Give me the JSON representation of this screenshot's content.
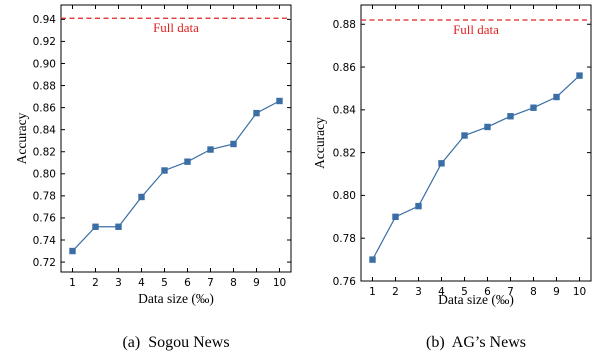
{
  "chart_data": [
    {
      "type": "line",
      "caption": "(a)  Sogou News",
      "xlabel": "Data size (‰)",
      "ylabel": "Accuracy",
      "x": [
        1,
        2,
        3,
        4,
        5,
        6,
        7,
        8,
        9,
        10
      ],
      "xticks": [
        "1",
        "2",
        "3",
        "4",
        "5",
        "6",
        "7",
        "8",
        "9",
        "10"
      ],
      "xlim": [
        0.5,
        10.5
      ],
      "ylim": [
        0.711,
        0.953
      ],
      "yticks": [
        "0.72",
        "0.74",
        "0.76",
        "0.78",
        "0.80",
        "0.82",
        "0.84",
        "0.86",
        "0.88",
        "0.90",
        "0.92",
        "0.94"
      ],
      "series": [
        {
          "values": [
            0.73,
            0.752,
            0.752,
            0.779,
            0.803,
            0.811,
            0.822,
            0.827,
            0.855,
            0.866
          ],
          "color": "#3a6ea5"
        }
      ],
      "reference_line": {
        "label": "Full data",
        "value": 0.941,
        "color": "#e02020"
      },
      "grid": false
    },
    {
      "type": "line",
      "caption": "(b)  AG’s News",
      "xlabel": "Data size (‰)",
      "ylabel": "Accuracy",
      "x": [
        1,
        2,
        3,
        4,
        5,
        6,
        7,
        8,
        9,
        10
      ],
      "xticks": [
        "1",
        "2",
        "3",
        "4",
        "5",
        "6",
        "7",
        "8",
        "9",
        "10"
      ],
      "xlim": [
        0.5,
        10.5
      ],
      "ylim": [
        0.76,
        0.889
      ],
      "yticks": [
        "0.76",
        "0.78",
        "0.80",
        "0.82",
        "0.84",
        "0.86",
        "0.88"
      ],
      "series": [
        {
          "values": [
            0.77,
            0.79,
            0.795,
            0.815,
            0.828,
            0.832,
            0.837,
            0.841,
            0.846,
            0.856
          ],
          "color": "#3a6ea5"
        }
      ],
      "reference_line": {
        "label": "Full data",
        "value": 0.882,
        "color": "#e02020"
      },
      "grid": false
    }
  ]
}
